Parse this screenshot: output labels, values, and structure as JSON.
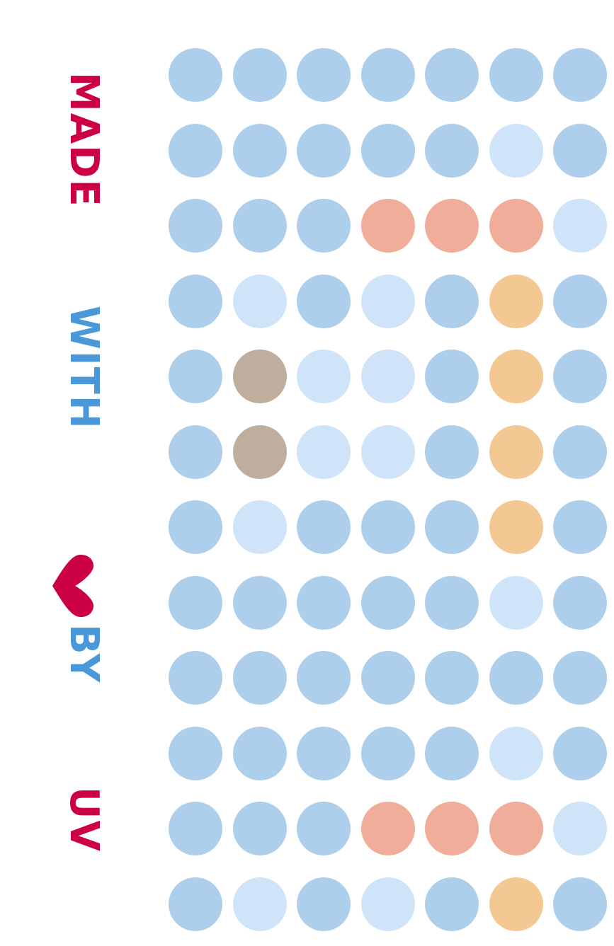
{
  "tagline": {
    "made": "MADE",
    "with": "WITH",
    "by": "BY",
    "uv": "UV",
    "heart_icon": "heart-icon",
    "colors": {
      "crimson": "#cc0044",
      "blue": "#4a98d8"
    }
  },
  "palette": {
    "B": "#aecfeb",
    "L": "#cfe4f8",
    "S": "#f0ae9a",
    "O": "#f4c892",
    "T": "#bfad9e"
  },
  "dots": [
    [
      "B",
      "B",
      "B",
      "B",
      "B",
      "B",
      "B"
    ],
    [
      "B",
      "B",
      "B",
      "B",
      "B",
      "L",
      "B"
    ],
    [
      "B",
      "B",
      "B",
      "S",
      "S",
      "S",
      "L"
    ],
    [
      "B",
      "L",
      "B",
      "L",
      "B",
      "O",
      "B"
    ],
    [
      "B",
      "T",
      "L",
      "L",
      "B",
      "O",
      "B"
    ],
    [
      "B",
      "T",
      "L",
      "L",
      "B",
      "O",
      "B"
    ],
    [
      "B",
      "L",
      "B",
      "B",
      "B",
      "O",
      "B"
    ],
    [
      "B",
      "B",
      "B",
      "B",
      "B",
      "L",
      "B"
    ],
    [
      "B",
      "B",
      "B",
      "B",
      "B",
      "B",
      "B"
    ],
    [
      "B",
      "B",
      "B",
      "B",
      "B",
      "L",
      "B"
    ],
    [
      "B",
      "B",
      "B",
      "S",
      "S",
      "S",
      "L"
    ],
    [
      "B",
      "L",
      "B",
      "L",
      "B",
      "O",
      "B"
    ]
  ]
}
